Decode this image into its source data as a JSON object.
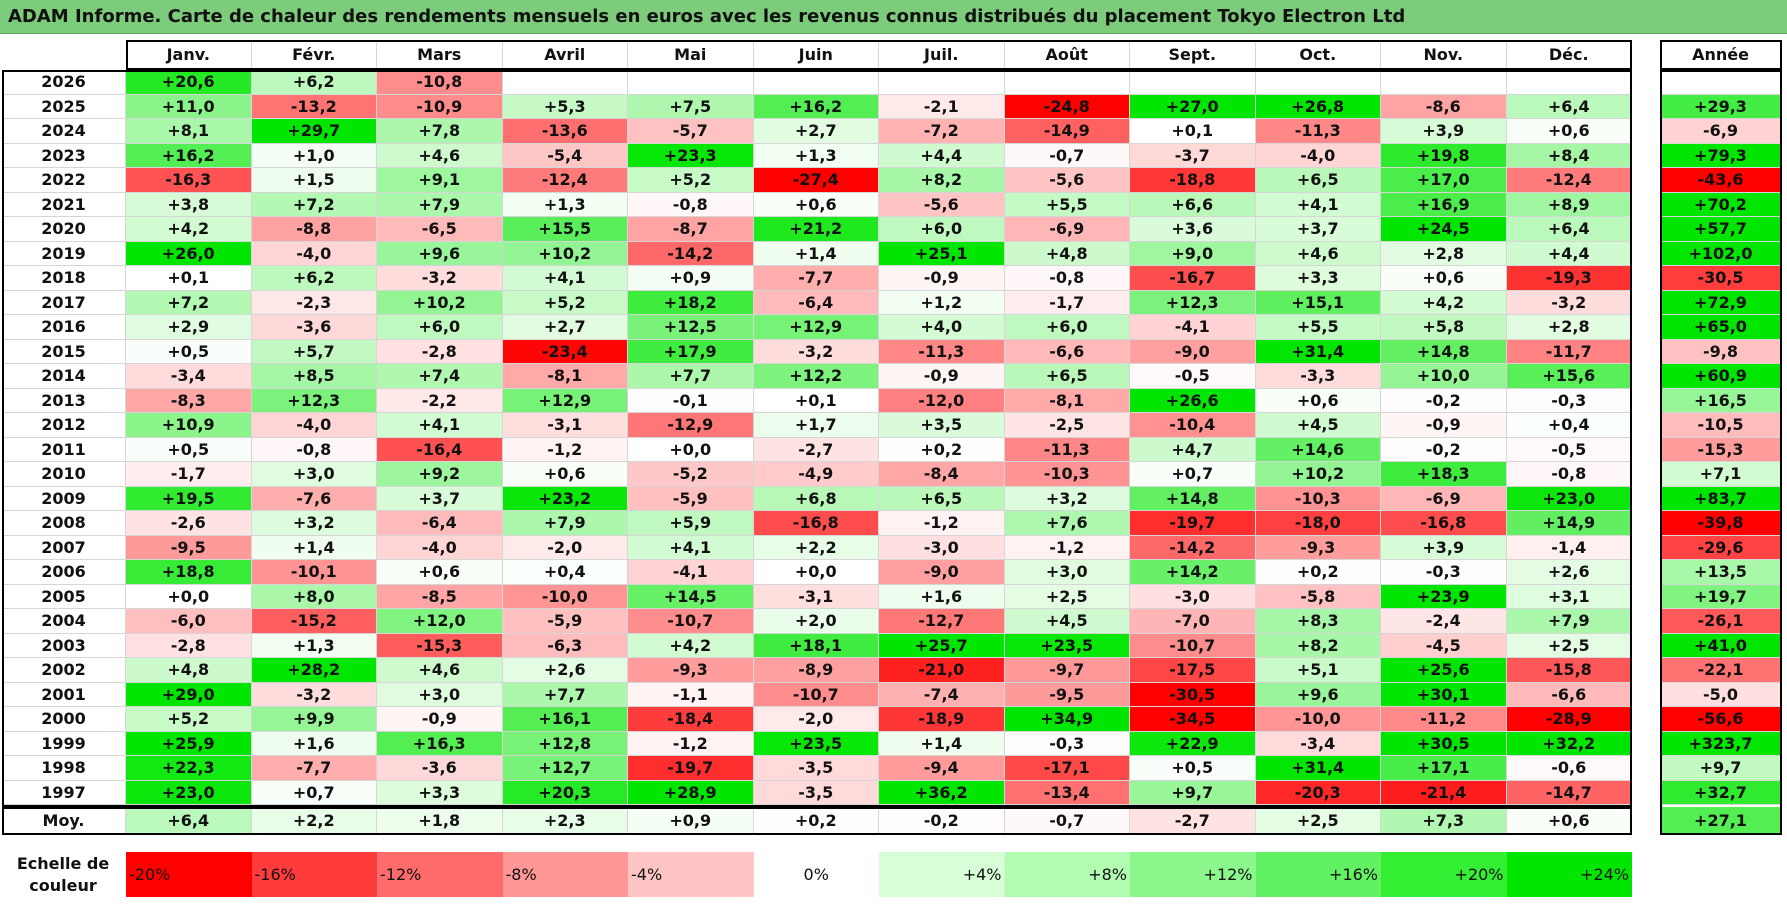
{
  "title": "ADAM Informe. Carte de chaleur des rendements mensuels en euros avec les revenus connus distribués du placement Tokyo Electron Ltd",
  "chart_data": {
    "type": "heatmap",
    "months": [
      "Janv.",
      "Févr.",
      "Mars",
      "Avril",
      "Mai",
      "Juin",
      "Juil.",
      "Août",
      "Sept.",
      "Oct.",
      "Nov.",
      "Déc."
    ],
    "year_header": "Année",
    "rows": [
      {
        "year": "2026",
        "values": [
          "+20,6",
          "+6,2",
          "-10,8",
          "",
          "",
          "",
          "",
          "",
          "",
          "",
          "",
          ""
        ],
        "annual": ""
      },
      {
        "year": "2025",
        "values": [
          "+11,0",
          "-13,2",
          "-10,9",
          "+5,3",
          "+7,5",
          "+16,2",
          "-2,1",
          "-24,8",
          "+27,0",
          "+26,8",
          "-8,6",
          "+6,4"
        ],
        "annual": "+29,3"
      },
      {
        "year": "2024",
        "values": [
          "+8,1",
          "+29,7",
          "+7,8",
          "-13,6",
          "-5,7",
          "+2,7",
          "-7,2",
          "-14,9",
          "+0,1",
          "-11,3",
          "+3,9",
          "+0,6"
        ],
        "annual": "-6,9"
      },
      {
        "year": "2023",
        "values": [
          "+16,2",
          "+1,0",
          "+4,6",
          "-5,4",
          "+23,3",
          "+1,3",
          "+4,4",
          "-0,7",
          "-3,7",
          "-4,0",
          "+19,8",
          "+8,4"
        ],
        "annual": "+79,3"
      },
      {
        "year": "2022",
        "values": [
          "-16,3",
          "+1,5",
          "+9,1",
          "-12,4",
          "+5,2",
          "-27,4",
          "+8,2",
          "-5,6",
          "-18,8",
          "+6,5",
          "+17,0",
          "-12,4"
        ],
        "annual": "-43,6"
      },
      {
        "year": "2021",
        "values": [
          "+3,8",
          "+7,2",
          "+7,9",
          "+1,3",
          "-0,8",
          "+0,6",
          "-5,6",
          "+5,5",
          "+6,6",
          "+4,1",
          "+16,9",
          "+8,9"
        ],
        "annual": "+70,2"
      },
      {
        "year": "2020",
        "values": [
          "+4,2",
          "-8,8",
          "-6,5",
          "+15,5",
          "-8,7",
          "+21,2",
          "+6,0",
          "-6,9",
          "+3,6",
          "+3,7",
          "+24,5",
          "+6,4"
        ],
        "annual": "+57,7"
      },
      {
        "year": "2019",
        "values": [
          "+26,0",
          "-4,0",
          "+9,6",
          "+10,2",
          "-14,2",
          "+1,4",
          "+25,1",
          "+4,8",
          "+9,0",
          "+4,6",
          "+2,8",
          "+4,4"
        ],
        "annual": "+102,0"
      },
      {
        "year": "2018",
        "values": [
          "+0,1",
          "+6,2",
          "-3,2",
          "+4,1",
          "+0,9",
          "-7,7",
          "-0,9",
          "-0,8",
          "-16,7",
          "+3,3",
          "+0,6",
          "-19,3"
        ],
        "annual": "-30,5"
      },
      {
        "year": "2017",
        "values": [
          "+7,2",
          "-2,3",
          "+10,2",
          "+5,2",
          "+18,2",
          "-6,4",
          "+1,2",
          "-1,7",
          "+12,3",
          "+15,1",
          "+4,2",
          "-3,2"
        ],
        "annual": "+72,9"
      },
      {
        "year": "2016",
        "values": [
          "+2,9",
          "-3,6",
          "+6,0",
          "+2,7",
          "+12,5",
          "+12,9",
          "+4,0",
          "+6,0",
          "-4,1",
          "+5,5",
          "+5,8",
          "+2,8"
        ],
        "annual": "+65,0"
      },
      {
        "year": "2015",
        "values": [
          "+0,5",
          "+5,7",
          "-2,8",
          "-23,4",
          "+17,9",
          "-3,2",
          "-11,3",
          "-6,6",
          "-9,0",
          "+31,4",
          "+14,8",
          "-11,7"
        ],
        "annual": "-9,8"
      },
      {
        "year": "2014",
        "values": [
          "-3,4",
          "+8,5",
          "+7,4",
          "-8,1",
          "+7,7",
          "+12,2",
          "-0,9",
          "+6,5",
          "-0,5",
          "-3,3",
          "+10,0",
          "+15,6"
        ],
        "annual": "+60,9"
      },
      {
        "year": "2013",
        "values": [
          "-8,3",
          "+12,3",
          "-2,2",
          "+12,9",
          "-0,1",
          "+0,1",
          "-12,0",
          "-8,1",
          "+26,6",
          "+0,6",
          "-0,2",
          "-0,3"
        ],
        "annual": "+16,5"
      },
      {
        "year": "2012",
        "values": [
          "+10,9",
          "-4,0",
          "+4,1",
          "-3,1",
          "-12,9",
          "+1,7",
          "+3,5",
          "-2,5",
          "-10,4",
          "+4,5",
          "-0,9",
          "+0,4"
        ],
        "annual": "-10,5"
      },
      {
        "year": "2011",
        "values": [
          "+0,5",
          "-0,8",
          "-16,4",
          "-1,2",
          "+0,0",
          "-2,7",
          "+0,2",
          "-11,3",
          "+4,7",
          "+14,6",
          "-0,2",
          "-0,5"
        ],
        "annual": "-15,3"
      },
      {
        "year": "2010",
        "values": [
          "-1,7",
          "+3,0",
          "+9,2",
          "+0,6",
          "-5,2",
          "-4,9",
          "-8,4",
          "-10,3",
          "+0,7",
          "+10,2",
          "+18,3",
          "-0,8"
        ],
        "annual": "+7,1"
      },
      {
        "year": "2009",
        "values": [
          "+19,5",
          "-7,6",
          "+3,7",
          "+23,2",
          "-5,9",
          "+6,8",
          "+6,5",
          "+3,2",
          "+14,8",
          "-10,3",
          "-6,9",
          "+23,0"
        ],
        "annual": "+83,7"
      },
      {
        "year": "2008",
        "values": [
          "-2,6",
          "+3,2",
          "-6,4",
          "+7,9",
          "+5,9",
          "-16,8",
          "-1,2",
          "+7,6",
          "-19,7",
          "-18,0",
          "-16,8",
          "+14,9"
        ],
        "annual": "-39,8"
      },
      {
        "year": "2007",
        "values": [
          "-9,5",
          "+1,4",
          "-4,0",
          "-2,0",
          "+4,1",
          "+2,2",
          "-3,0",
          "-1,2",
          "-14,2",
          "-9,3",
          "+3,9",
          "-1,4"
        ],
        "annual": "-29,6"
      },
      {
        "year": "2006",
        "values": [
          "+18,8",
          "-10,1",
          "+0,6",
          "+0,4",
          "-4,1",
          "+0,0",
          "-9,0",
          "+3,0",
          "+14,2",
          "+0,2",
          "-0,3",
          "+2,6"
        ],
        "annual": "+13,5"
      },
      {
        "year": "2005",
        "values": [
          "+0,0",
          "+8,0",
          "-8,5",
          "-10,0",
          "+14,5",
          "-3,1",
          "+1,6",
          "+2,5",
          "-3,0",
          "-5,8",
          "+23,9",
          "+3,1"
        ],
        "annual": "+19,7"
      },
      {
        "year": "2004",
        "values": [
          "-6,0",
          "-15,2",
          "+12,0",
          "-5,9",
          "-10,7",
          "+2,0",
          "-12,7",
          "+4,5",
          "-7,0",
          "+8,3",
          "-2,4",
          "+7,9"
        ],
        "annual": "-26,1"
      },
      {
        "year": "2003",
        "values": [
          "-2,8",
          "+1,3",
          "-15,3",
          "-6,3",
          "+4,2",
          "+18,1",
          "+25,7",
          "+23,5",
          "-10,7",
          "+8,2",
          "-4,5",
          "+2,5"
        ],
        "annual": "+41,0"
      },
      {
        "year": "2002",
        "values": [
          "+4,8",
          "+28,2",
          "+4,6",
          "+2,6",
          "-9,3",
          "-8,9",
          "-21,0",
          "-9,7",
          "-17,5",
          "+5,1",
          "+25,6",
          "-15,8"
        ],
        "annual": "-22,1"
      },
      {
        "year": "2001",
        "values": [
          "+29,0",
          "-3,2",
          "+3,0",
          "+7,7",
          "-1,1",
          "-10,7",
          "-7,4",
          "-9,5",
          "-30,5",
          "+9,6",
          "+30,1",
          "-6,6"
        ],
        "annual": "-5,0"
      },
      {
        "year": "2000",
        "values": [
          "+5,2",
          "+9,9",
          "-0,9",
          "+16,1",
          "-18,4",
          "-2,0",
          "-18,9",
          "+34,9",
          "-34,5",
          "-10,0",
          "-11,2",
          "-28,9"
        ],
        "annual": "-56,6"
      },
      {
        "year": "1999",
        "values": [
          "+25,9",
          "+1,6",
          "+16,3",
          "+12,8",
          "-1,2",
          "+23,5",
          "+1,4",
          "-0,3",
          "+22,9",
          "-3,4",
          "+30,5",
          "+32,2"
        ],
        "annual": "+323,7"
      },
      {
        "year": "1998",
        "values": [
          "+22,3",
          "-7,7",
          "-3,6",
          "+12,7",
          "-19,7",
          "-3,5",
          "-9,4",
          "-17,1",
          "+0,5",
          "+31,4",
          "+17,1",
          "-0,6"
        ],
        "annual": "+9,7"
      },
      {
        "year": "1997",
        "values": [
          "+23,0",
          "+0,7",
          "+3,3",
          "+20,3",
          "+28,9",
          "-3,5",
          "+36,2",
          "-13,4",
          "+9,7",
          "-20,3",
          "-21,4",
          "-14,7"
        ],
        "annual": "+32,7"
      }
    ],
    "average": {
      "label": "Moy.",
      "values": [
        "+6,4",
        "+2,2",
        "+1,8",
        "+2,3",
        "+0,9",
        "+0,2",
        "-0,2",
        "-0,7",
        "-2,7",
        "+2,5",
        "+7,3",
        "+0,6"
      ],
      "annual": "+27,1"
    },
    "scale": {
      "label": "Echelle de couleur",
      "steps": [
        "-20%",
        "-16%",
        "-12%",
        "-8%",
        "-4%",
        "0%",
        "+4%",
        "+8%",
        "+12%",
        "+16%",
        "+20%",
        "+24%"
      ],
      "colors": [
        "#ff0000",
        "#ff3b3b",
        "#ff6a6a",
        "#ff9797",
        "#ffc4c4",
        "#ffffff",
        "#d8fed8",
        "#b2fcb2",
        "#8cf78c",
        "#62f162",
        "#33ee33",
        "#00e600"
      ]
    }
  }
}
